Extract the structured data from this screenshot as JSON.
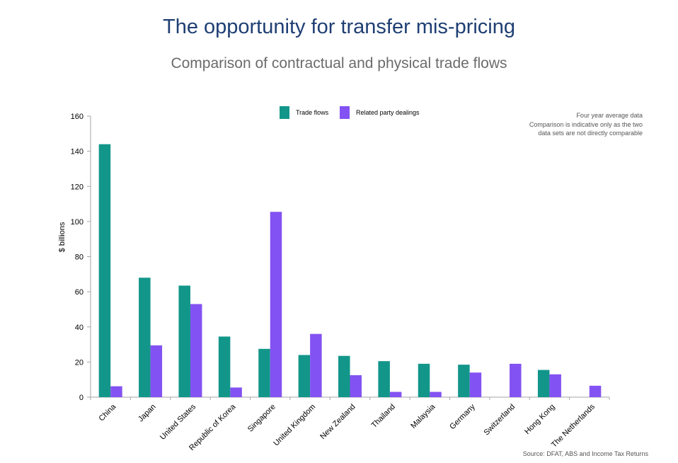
{
  "colors": {
    "trade": "#12968a",
    "related": "#8352f2",
    "axis": "#a6a6a6",
    "text": "#000000"
  },
  "chart_data": {
    "type": "bar",
    "title": "The opportunity for transfer mis-pricing",
    "subtitle": "Comparison of contractual and physical trade flows",
    "xlabel": "",
    "ylabel": "$ billions",
    "ylim": [
      0,
      160
    ],
    "yticks": [
      0,
      20,
      40,
      60,
      80,
      100,
      120,
      140,
      160
    ],
    "grid": false,
    "legend_position": "top-center",
    "categories": [
      "China",
      "Japan",
      "United States",
      "Republic of Korea",
      "Singapore",
      "United Kingdom",
      "New Zealand",
      "Thailand",
      "Malaysia",
      "Germany",
      "Switzerland",
      "Hong Kong",
      "The Netherlands"
    ],
    "series": [
      {
        "name": "Trade flows",
        "values": [
          144,
          68,
          63.5,
          34.5,
          27.5,
          24,
          23.5,
          20.5,
          19,
          18.5,
          0,
          15.5,
          0
        ]
      },
      {
        "name": "Related party dealings",
        "values": [
          6.2,
          29.5,
          53,
          5.5,
          105.5,
          36,
          12.5,
          3,
          3,
          14,
          19,
          13,
          6.5
        ]
      }
    ],
    "note": [
      "Four year average data",
      "Comparison is indicative only as the two",
      "data sets are not directly comparable"
    ],
    "source": "Source: DFAT, ABS and Income Tax Returns"
  }
}
